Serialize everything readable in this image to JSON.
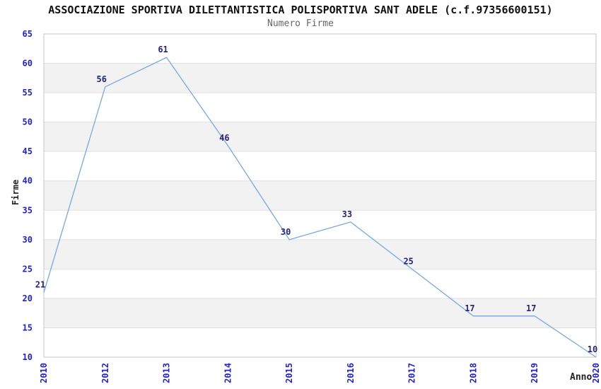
{
  "chart_data": {
    "type": "line",
    "title": "ASSOCIAZIONE SPORTIVA DILETTANTISTICA POLISPORTIVA SANT ADELE (c.f.97356600151)",
    "subtitle": "Numero Firme",
    "xlabel": "Anno",
    "ylabel": "Firme",
    "categories": [
      "2010",
      "2012",
      "2013",
      "2014",
      "2015",
      "2016",
      "2017",
      "2018",
      "2019",
      "2020"
    ],
    "values": [
      21,
      56,
      61,
      46,
      30,
      33,
      25,
      17,
      17,
      10
    ],
    "ylim": [
      10,
      65
    ],
    "ytick_step": 5,
    "yticks": [
      10,
      15,
      20,
      25,
      30,
      35,
      40,
      45,
      50,
      55,
      60,
      65
    ],
    "grid": "horizontal",
    "banded_background": true,
    "point_labels_visible": true,
    "legend": "none",
    "x_tick_rotation_deg": -90,
    "colors": {
      "line": "#79a8e0",
      "tick_label": "#2222cc",
      "value_label": "#24247c",
      "band": "#f2f2f2",
      "gridline": "#e0e0e0",
      "frame": "#c6c6c6",
      "title": "#111111",
      "subtitle": "#666666",
      "axis_title": "#222222",
      "background": "#ffffff"
    }
  }
}
